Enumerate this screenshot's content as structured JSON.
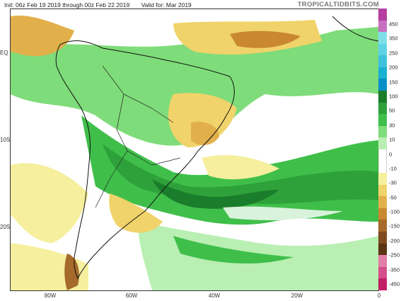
{
  "header": {
    "init": "Init: 06z Feb 19 2019 through 00z Feb 22 2019",
    "valid": "Valid for: Mar 2019",
    "brand": "TROPICALTIDBITS.COM"
  },
  "axes": {
    "lat_labels": [
      "EQ",
      "10S",
      "20S"
    ],
    "lon_labels": [
      "80W",
      "60W",
      "40W",
      "20W",
      "0"
    ]
  },
  "colorbar": {
    "labels": [
      "450",
      "350",
      "250",
      "200",
      "150",
      "100",
      "50",
      "30",
      "10",
      "0",
      "-10",
      "-30",
      "-50",
      "-100",
      "-150",
      "-200",
      "-250",
      "-350",
      "-450"
    ],
    "colors": [
      "#b43fa0",
      "#c771c0",
      "#7fdfe9",
      "#5fd3e3",
      "#3fc3dc",
      "#1bb0d0",
      "#0a8fc7",
      "#1a7d2b",
      "#2fa13a",
      "#3fbf4a",
      "#7fdc7a",
      "#b9efb3",
      "#ffffff",
      "#ffffff",
      "#f5ef9e",
      "#f0d36a",
      "#e2b04b",
      "#c9882f",
      "#a66a2b",
      "#7e4a1e",
      "#5a3413",
      "#e07fa7",
      "#d64f8a",
      "#c01f63"
    ]
  }
}
